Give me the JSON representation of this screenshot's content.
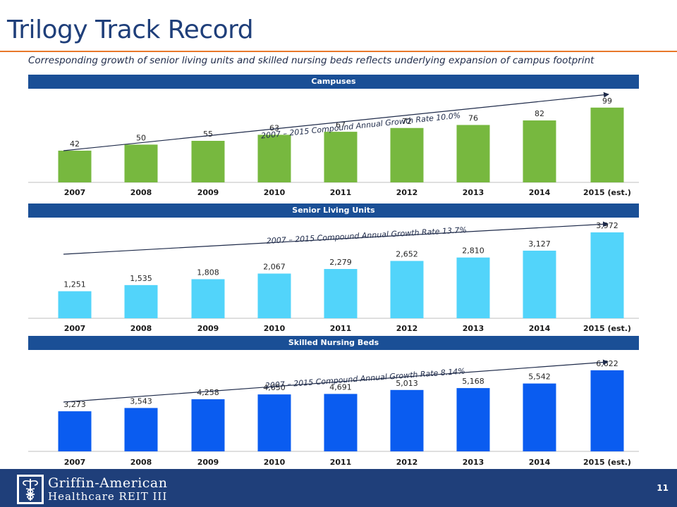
{
  "page": {
    "title": "Trilogy Track Record",
    "subtitle": "Corresponding growth of senior living units and skilled nursing beds reflects underlying expansion of campus footprint",
    "page_number": "11"
  },
  "footer": {
    "logo_line1": "Griffin-American",
    "logo_line2": "Healthcare REIT III"
  },
  "colors": {
    "title": "#1f3f7a",
    "accent_rule": "#e8782a",
    "header_bar": "#1a4f96",
    "footer_bar": "#1f3f7a"
  },
  "chart_data": [
    {
      "type": "bar",
      "title": "Campuses",
      "categories": [
        "2007",
        "2008",
        "2009",
        "2010",
        "2011",
        "2012",
        "2013",
        "2014",
        "2015 (est.)"
      ],
      "values": [
        42,
        50,
        55,
        63,
        67,
        72,
        76,
        82,
        99
      ],
      "value_labels": [
        "42",
        "50",
        "55",
        "63",
        "67",
        "72",
        "76",
        "82",
        "99"
      ],
      "annotation": "2007 – 2015 Compound Annual Growth Rate 10.0%",
      "color": "#77b83f",
      "ylim": [
        0,
        110
      ]
    },
    {
      "type": "bar",
      "title": "Senior Living Units",
      "categories": [
        "2007",
        "2008",
        "2009",
        "2010",
        "2011",
        "2012",
        "2013",
        "2014",
        "2015 (est.)"
      ],
      "values": [
        1251,
        1535,
        1808,
        2067,
        2279,
        2652,
        2810,
        3127,
        3972
      ],
      "value_labels": [
        "1,251",
        "1,535",
        "1,808",
        "2,067",
        "2,279",
        "2,652",
        "2,810",
        "3,127",
        "3,972"
      ],
      "annotation": "2007 – 2015 Compound Annual Growth Rate 13.7%",
      "color": "#52d4fa",
      "ylim": [
        0,
        4200
      ]
    },
    {
      "type": "bar",
      "title": "Skilled Nursing Beds",
      "categories": [
        "2007",
        "2008",
        "2009",
        "2010",
        "2011",
        "2012",
        "2013",
        "2014",
        "2015 (est.)"
      ],
      "values": [
        3273,
        3543,
        4258,
        4650,
        4691,
        5013,
        5168,
        5542,
        6622
      ],
      "value_labels": [
        "3,273",
        "3,543",
        "4,258",
        "4,650",
        "4,691",
        "5,013",
        "5,168",
        "5,542",
        "6,622"
      ],
      "annotation": "2007 – 2015 Compound Annual Growth Rate 8.14%",
      "color": "#0a5cf0",
      "ylim": [
        0,
        6900
      ]
    }
  ]
}
